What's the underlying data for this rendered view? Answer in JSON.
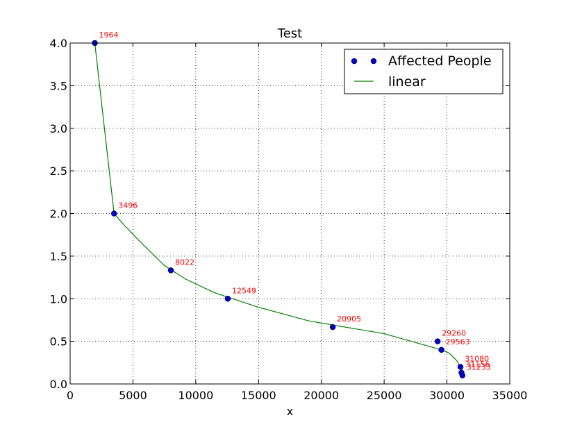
{
  "chart_data": {
    "type": "scatter",
    "title": "Test",
    "xlabel": "x",
    "ylabel": "",
    "xlim": [
      0,
      35000
    ],
    "ylim": [
      0,
      4.0
    ],
    "xticks": [
      0,
      5000,
      10000,
      15000,
      20000,
      25000,
      30000,
      35000
    ],
    "xtick_labels": [
      "0",
      "5000",
      "10000",
      "15000",
      "20000",
      "25000",
      "30000",
      "35000"
    ],
    "yticks": [
      0,
      0.5,
      1.0,
      1.5,
      2.0,
      2.5,
      3.0,
      3.5,
      4.0
    ],
    "ytick_labels": [
      "0.0",
      "0.5",
      "1.0",
      "1.5",
      "2.0",
      "2.5",
      "3.0",
      "3.5",
      "4.0"
    ],
    "grid": true,
    "legend_position": "top-right",
    "series": [
      {
        "name": "Affected People",
        "kind": "points",
        "color": "#0000cc",
        "x": [
          1964,
          3496,
          8022,
          12549,
          20905,
          29260,
          29563,
          31080,
          31156,
          31233
        ],
        "y": [
          4.0,
          2.0,
          1.333,
          1.0,
          0.667,
          0.5,
          0.4,
          0.2,
          0.133,
          0.1
        ],
        "labels": [
          "1964",
          "3496",
          "8022",
          "12549",
          "20905",
          "29260",
          "29563",
          "31080",
          "31156",
          "31233"
        ],
        "label_color": "#ff0000"
      },
      {
        "name": "linear",
        "kind": "line",
        "color": "#008000",
        "x": [
          1964,
          3496,
          4200,
          5500,
          7500,
          9200,
          11500,
          15000,
          19000,
          25000,
          29563,
          30200,
          30800,
          31080,
          31156,
          31233
        ],
        "y": [
          4.0,
          2.0,
          1.88,
          1.68,
          1.39,
          1.23,
          1.07,
          0.9,
          0.74,
          0.59,
          0.4,
          0.36,
          0.27,
          0.2,
          0.133,
          0.1
        ]
      }
    ]
  }
}
